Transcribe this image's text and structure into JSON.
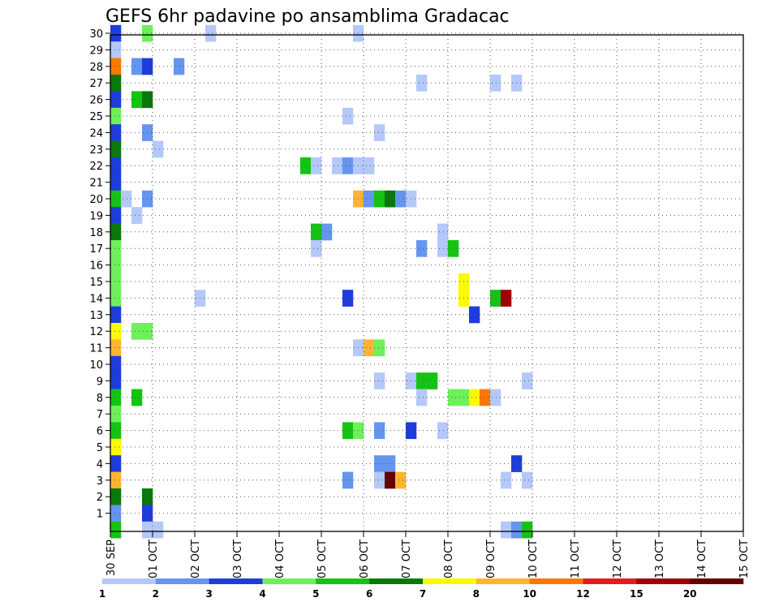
{
  "chart_data": {
    "type": "heatmap",
    "title": "GEFS 6hr padavine po ansamblima Gradacac",
    "xlabel": "",
    "ylabel": "",
    "grid": true,
    "x_tick_labels": [
      "30 SEP",
      "01 OCT",
      "02 OCT",
      "03 OCT",
      "04 OCT",
      "05 OCT",
      "06 OCT",
      "07 OCT",
      "08 OCT",
      "09 OCT",
      "10 OCT",
      "11 OCT",
      "12 OCT",
      "13 OCT",
      "14 OCT",
      "15 OCT"
    ],
    "x_steps_per_day": 4,
    "x_range": [
      0,
      60
    ],
    "y_tick_labels": [
      "1",
      "2",
      "3",
      "4",
      "5",
      "6",
      "7",
      "8",
      "9",
      "10",
      "11",
      "12",
      "13",
      "14",
      "15",
      "16",
      "17",
      "18",
      "19",
      "20",
      "21",
      "22",
      "23",
      "24",
      "25",
      "26",
      "27",
      "28",
      "29",
      "30"
    ],
    "y_range": [
      0,
      30
    ],
    "colorbar": {
      "colors": [
        "#b4c8fa",
        "#6496f0",
        "#1e3cdc",
        "#6ef05a",
        "#14c314",
        "#0a780a",
        "#fafa00",
        "#ffb432",
        "#fa7800",
        "#e11e1e",
        "#a00000",
        "#640000"
      ],
      "labels": [
        "1",
        "2",
        "3",
        "4",
        "5",
        "6",
        "7",
        "8",
        "10",
        "12",
        "15",
        "20"
      ]
    },
    "cells": [
      [
        0,
        30,
        "#1e3cdc"
      ],
      [
        0,
        29,
        "#b4c8fa"
      ],
      [
        0,
        28,
        "#fa7800"
      ],
      [
        0,
        27,
        "#0a780a"
      ],
      [
        0,
        26,
        "#1e3cdc"
      ],
      [
        0,
        25,
        "#6ef05a"
      ],
      [
        0,
        24,
        "#1e3cdc"
      ],
      [
        0,
        23,
        "#0a780a"
      ],
      [
        0,
        22,
        "#1e3cdc"
      ],
      [
        0,
        21,
        "#1e3cdc"
      ],
      [
        0,
        20,
        "#14c314"
      ],
      [
        0,
        19,
        "#1e3cdc"
      ],
      [
        0,
        18,
        "#0a780a"
      ],
      [
        0,
        17,
        "#6ef05a"
      ],
      [
        0,
        16,
        "#6ef05a"
      ],
      [
        0,
        15,
        "#6ef05a"
      ],
      [
        0,
        14,
        "#6ef05a"
      ],
      [
        0,
        13,
        "#1e3cdc"
      ],
      [
        0,
        12,
        "#fafa00"
      ],
      [
        0,
        11,
        "#ffb432"
      ],
      [
        0,
        10,
        "#1e3cdc"
      ],
      [
        0,
        9,
        "#1e3cdc"
      ],
      [
        0,
        8,
        "#14c314"
      ],
      [
        0,
        7,
        "#6ef05a"
      ],
      [
        0,
        6,
        "#14c314"
      ],
      [
        0,
        5,
        "#fafa00"
      ],
      [
        0,
        4,
        "#1e3cdc"
      ],
      [
        0,
        3,
        "#ffb432"
      ],
      [
        0,
        2,
        "#0a780a"
      ],
      [
        0,
        1,
        "#6496f0"
      ],
      [
        0,
        0,
        "#14c314"
      ],
      [
        1,
        20,
        "#b4c8fa"
      ],
      [
        3,
        30,
        "#6ef05a"
      ],
      [
        3,
        2,
        "#0a780a"
      ],
      [
        3,
        1,
        "#1e3cdc"
      ],
      [
        3,
        0,
        "#b4c8fa"
      ],
      [
        2,
        28,
        "#6496f0"
      ],
      [
        3,
        28,
        "#1e3cdc"
      ],
      [
        2,
        26,
        "#14c314"
      ],
      [
        3,
        26,
        "#0a780a"
      ],
      [
        3,
        24,
        "#6496f0"
      ],
      [
        4,
        23,
        "#b4c8fa"
      ],
      [
        3,
        20,
        "#6496f0"
      ],
      [
        2,
        19,
        "#b4c8fa"
      ],
      [
        2,
        12,
        "#6ef05a"
      ],
      [
        3,
        12,
        "#6ef05a"
      ],
      [
        2,
        8,
        "#14c314"
      ],
      [
        4,
        0,
        "#b4c8fa"
      ],
      [
        6,
        28,
        "#6496f0"
      ],
      [
        8,
        14,
        "#b4c8fa"
      ],
      [
        9,
        30,
        "#b4c8fa"
      ],
      [
        18,
        22,
        "#14c314"
      ],
      [
        19,
        22,
        "#b4c8fa"
      ],
      [
        21,
        22,
        "#b4c8fa"
      ],
      [
        22,
        22,
        "#6496f0"
      ],
      [
        23,
        22,
        "#b4c8fa"
      ],
      [
        24,
        22,
        "#b4c8fa"
      ],
      [
        19,
        18,
        "#14c314"
      ],
      [
        20,
        18,
        "#6496f0"
      ],
      [
        19,
        17,
        "#b4c8fa"
      ],
      [
        22,
        25,
        "#b4c8fa"
      ],
      [
        23,
        30,
        "#b4c8fa"
      ],
      [
        25,
        24,
        "#b4c8fa"
      ],
      [
        23,
        20,
        "#ffb432"
      ],
      [
        24,
        20,
        "#6496f0"
      ],
      [
        25,
        20,
        "#14c314"
      ],
      [
        26,
        20,
        "#0a780a"
      ],
      [
        27,
        20,
        "#6496f0"
      ],
      [
        28,
        20,
        "#b4c8fa"
      ],
      [
        22,
        14,
        "#1e3cdc"
      ],
      [
        23,
        11,
        "#b4c8fa"
      ],
      [
        24,
        11,
        "#ffb432"
      ],
      [
        25,
        11,
        "#6ef05a"
      ],
      [
        25,
        9,
        "#b4c8fa"
      ],
      [
        22,
        6,
        "#14c314"
      ],
      [
        23,
        6,
        "#6ef05a"
      ],
      [
        25,
        6,
        "#6496f0"
      ],
      [
        25,
        4,
        "#6496f0"
      ],
      [
        26,
        4,
        "#6496f0"
      ],
      [
        22,
        3,
        "#6496f0"
      ],
      [
        25,
        3,
        "#b4c8fa"
      ],
      [
        26,
        3,
        "#640000"
      ],
      [
        27,
        3,
        "#ffb432"
      ],
      [
        29,
        27,
        "#b4c8fa"
      ],
      [
        29,
        17,
        "#6496f0"
      ],
      [
        31,
        18,
        "#b4c8fa"
      ],
      [
        31,
        17,
        "#b4c8fa"
      ],
      [
        32,
        17,
        "#14c314"
      ],
      [
        28,
        9,
        "#b4c8fa"
      ],
      [
        29,
        9,
        "#14c314"
      ],
      [
        30,
        9,
        "#14c314"
      ],
      [
        29,
        8,
        "#b4c8fa"
      ],
      [
        28,
        6,
        "#1e3cdc"
      ],
      [
        31,
        6,
        "#b4c8fa"
      ],
      [
        32,
        8,
        "#6ef05a"
      ],
      [
        33,
        8,
        "#6ef05a"
      ],
      [
        33,
        15,
        "#fafa00"
      ],
      [
        33,
        14,
        "#fafa00"
      ],
      [
        34,
        13,
        "#1e3cdc"
      ],
      [
        34,
        8,
        "#fafa00"
      ],
      [
        35,
        8,
        "#fa7800"
      ],
      [
        36,
        8,
        "#b4c8fa"
      ],
      [
        36,
        14,
        "#14c314"
      ],
      [
        37,
        14,
        "#a00000"
      ],
      [
        36,
        27,
        "#b4c8fa"
      ],
      [
        38,
        27,
        "#b4c8fa"
      ],
      [
        38,
        4,
        "#1e3cdc"
      ],
      [
        37,
        3,
        "#b4c8fa"
      ],
      [
        39,
        3,
        "#b4c8fa"
      ],
      [
        39,
        9,
        "#b4c8fa"
      ],
      [
        37,
        0,
        "#b4c8fa"
      ],
      [
        38,
        0,
        "#6496f0"
      ],
      [
        39,
        0,
        "#14c314"
      ]
    ]
  }
}
